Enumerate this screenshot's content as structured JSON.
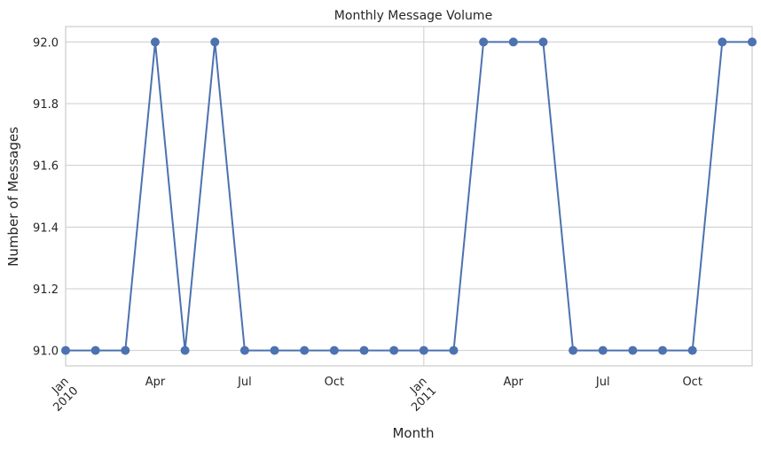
{
  "chart_data": {
    "type": "line",
    "title": "Monthly Message Volume",
    "xlabel": "Month",
    "ylabel": "Number of Messages",
    "x": [
      "2010-01",
      "2010-02",
      "2010-03",
      "2010-04",
      "2010-05",
      "2010-06",
      "2010-07",
      "2010-08",
      "2010-09",
      "2010-10",
      "2010-11",
      "2010-12",
      "2011-01",
      "2011-02",
      "2011-03",
      "2011-04",
      "2011-05",
      "2011-06",
      "2011-07",
      "2011-08",
      "2011-09",
      "2011-10",
      "2011-11",
      "2011-12"
    ],
    "series": [
      {
        "values": [
          91,
          91,
          91,
          92,
          91,
          92,
          91,
          91,
          91,
          91,
          91,
          91,
          91,
          91,
          92,
          92,
          92,
          91,
          91,
          91,
          91,
          91,
          92,
          92
        ],
        "color": "#4c72b0",
        "marker": "circle"
      }
    ],
    "xlim": [
      "2010-01",
      "2011-12"
    ],
    "ylim": [
      90.95,
      92.05
    ],
    "yticks": [
      "91.0",
      "91.2",
      "91.4",
      "91.6",
      "91.8",
      "92.0"
    ],
    "xticks": [
      {
        "at": "2010-01",
        "label": "Jan",
        "sublabel": "2010"
      },
      {
        "at": "2010-04",
        "label": "Apr"
      },
      {
        "at": "2010-07",
        "label": "Jul"
      },
      {
        "at": "2010-10",
        "label": "Oct"
      },
      {
        "at": "2011-01",
        "label": "Jan",
        "sublabel": "2011"
      },
      {
        "at": "2011-04",
        "label": "Apr"
      },
      {
        "at": "2011-07",
        "label": "Jul"
      },
      {
        "at": "2011-10",
        "label": "Oct"
      }
    ],
    "grid": true
  }
}
